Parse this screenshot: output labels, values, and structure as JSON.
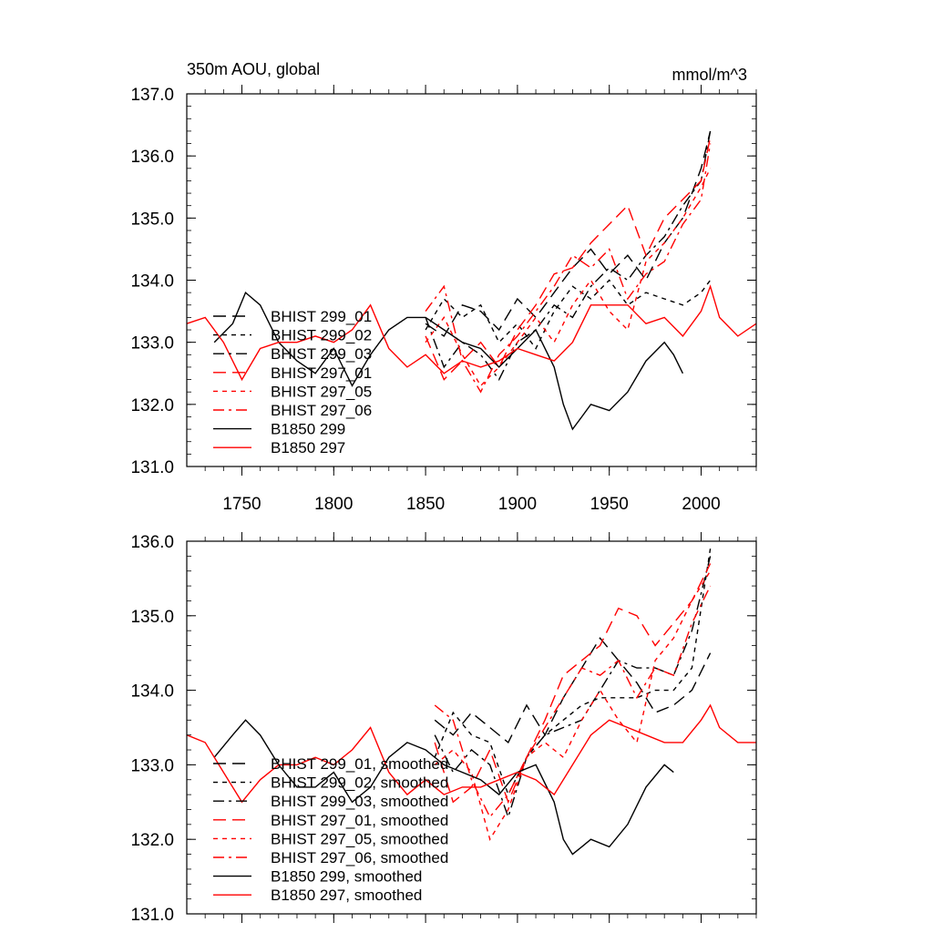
{
  "chart_data": [
    {
      "type": "line",
      "title": "350m AOU, global",
      "units": "mmol/m^3",
      "xlim": [
        1720,
        2030
      ],
      "ylim": [
        131.0,
        137.0
      ],
      "x_ticks": [
        1750,
        1800,
        1850,
        1900,
        1950,
        2000
      ],
      "y_ticks": [
        131.0,
        132.0,
        133.0,
        134.0,
        135.0,
        136.0,
        137.0
      ],
      "y_tick_labels": [
        "131.0",
        "132.0",
        "133.0",
        "134.0",
        "135.0",
        "136.0",
        "137.0"
      ],
      "x_tick_labels": [
        "1750",
        "1800",
        "1850",
        "1900",
        "1950",
        "2000"
      ],
      "grid": false,
      "legend_position": "lower-left",
      "series": [
        {
          "name": "BHIST 299_01",
          "color": "#000000",
          "dash": "longdash",
          "x": [
            1850,
            1860,
            1870,
            1880,
            1890,
            1900,
            1910,
            1920,
            1930,
            1940,
            1950,
            1960,
            1970,
            1980,
            1990,
            2000,
            2005
          ],
          "y": [
            133.3,
            133.1,
            133.6,
            133.5,
            133.2,
            133.7,
            133.4,
            133.8,
            134.2,
            134.5,
            134.1,
            134.4,
            134.0,
            134.6,
            135.0,
            135.8,
            136.4
          ]
        },
        {
          "name": "BHIST 299_02",
          "color": "#000000",
          "dash": "shortdash",
          "x": [
            1850,
            1860,
            1870,
            1880,
            1890,
            1900,
            1910,
            1920,
            1930,
            1940,
            1950,
            1960,
            1970,
            1980,
            1990,
            2000,
            2005
          ],
          "y": [
            133.2,
            133.7,
            133.4,
            133.6,
            133.0,
            133.3,
            132.9,
            133.5,
            133.9,
            133.7,
            134.0,
            133.6,
            133.8,
            133.7,
            133.6,
            133.8,
            134.0
          ]
        },
        {
          "name": "BHIST 299_03",
          "color": "#000000",
          "dash": "dashdot",
          "x": [
            1850,
            1860,
            1870,
            1880,
            1890,
            1900,
            1910,
            1920,
            1930,
            1940,
            1950,
            1960,
            1970,
            1980,
            1990,
            2000,
            2005
          ],
          "y": [
            133.4,
            132.6,
            133.0,
            132.8,
            132.4,
            133.0,
            133.2,
            133.6,
            133.4,
            133.9,
            134.2,
            134.0,
            134.4,
            134.7,
            135.2,
            135.6,
            136.4
          ]
        },
        {
          "name": "BHIST 297_01",
          "color": "#ff0000",
          "dash": "longdash",
          "x": [
            1850,
            1860,
            1870,
            1880,
            1890,
            1900,
            1910,
            1920,
            1930,
            1940,
            1950,
            1960,
            1970,
            1980,
            1990,
            2000,
            2005
          ],
          "y": [
            133.1,
            132.4,
            132.7,
            133.0,
            132.6,
            133.2,
            133.6,
            134.1,
            134.2,
            134.6,
            134.9,
            135.2,
            134.4,
            135.0,
            135.3,
            135.6,
            136.3
          ]
        },
        {
          "name": "BHIST 297_05",
          "color": "#ff0000",
          "dash": "shortdash",
          "x": [
            1850,
            1860,
            1870,
            1880,
            1890,
            1900,
            1910,
            1920,
            1930,
            1940,
            1950,
            1960,
            1970,
            1980,
            1990,
            2000,
            2005
          ],
          "y": [
            133.0,
            133.4,
            132.8,
            132.3,
            132.6,
            133.0,
            133.4,
            133.0,
            133.6,
            134.0,
            133.5,
            133.2,
            134.3,
            134.6,
            135.0,
            135.5,
            135.8
          ]
        },
        {
          "name": "BHIST 297_06",
          "color": "#ff0000",
          "dash": "dashdot",
          "x": [
            1850,
            1860,
            1870,
            1880,
            1890,
            1900,
            1910,
            1920,
            1930,
            1940,
            1950,
            1960,
            1970,
            1980,
            1990,
            2000,
            2005
          ],
          "y": [
            133.5,
            133.9,
            132.7,
            132.2,
            132.8,
            133.1,
            133.5,
            133.9,
            134.4,
            134.2,
            134.5,
            133.7,
            134.1,
            134.3,
            134.9,
            135.3,
            136.2
          ]
        },
        {
          "name": "B1850 299",
          "color": "#000000",
          "dash": "solid",
          "x": [
            1735,
            1745,
            1752,
            1760,
            1770,
            1780,
            1790,
            1800,
            1810,
            1820,
            1830,
            1840,
            1850,
            1860,
            1870,
            1880,
            1890,
            1900,
            1910,
            1920,
            1925,
            1930,
            1935,
            1940,
            1950,
            1960,
            1970,
            1980,
            1985,
            1990
          ],
          "y": [
            133.0,
            133.3,
            133.8,
            133.6,
            133.0,
            132.7,
            132.5,
            132.9,
            132.3,
            132.8,
            133.2,
            133.4,
            133.4,
            133.2,
            133.0,
            132.9,
            132.6,
            132.9,
            133.2,
            132.6,
            132.0,
            131.6,
            131.8,
            132.0,
            131.9,
            132.2,
            132.7,
            133.0,
            132.8,
            132.5
          ],
          "smoothed": false
        },
        {
          "name": "B1850 297",
          "color": "#ff0000",
          "dash": "solid",
          "x": [
            1720,
            1730,
            1740,
            1750,
            1760,
            1770,
            1780,
            1790,
            1800,
            1810,
            1820,
            1830,
            1840,
            1850,
            1860,
            1870,
            1880,
            1890,
            1900,
            1910,
            1920,
            1930,
            1940,
            1950,
            1960,
            1970,
            1980,
            1990,
            2000,
            2005,
            2010,
            2020,
            2030
          ],
          "y": [
            133.3,
            133.4,
            133.0,
            132.4,
            132.9,
            133.0,
            133.0,
            133.1,
            133.0,
            133.2,
            133.6,
            132.9,
            132.6,
            132.8,
            132.5,
            132.7,
            132.6,
            132.7,
            132.9,
            132.8,
            132.7,
            133.0,
            133.6,
            133.6,
            133.6,
            133.3,
            133.4,
            133.1,
            133.5,
            133.9,
            133.4,
            133.1,
            133.3
          ]
        }
      ]
    },
    {
      "type": "line",
      "xlim": [
        1720,
        2030
      ],
      "ylim": [
        131.0,
        136.0
      ],
      "y_ticks": [
        131.0,
        132.0,
        133.0,
        134.0,
        135.0,
        136.0
      ],
      "y_tick_labels": [
        "131.0",
        "132.0",
        "133.0",
        "134.0",
        "135.0",
        "136.0"
      ],
      "x_ticks": [
        1750,
        1800,
        1850,
        1900,
        1950,
        2000
      ],
      "grid": false,
      "legend_position": "lower-left",
      "series": [
        {
          "name": "BHIST 299_01, smoothed",
          "color": "#000000",
          "dash": "longdash",
          "x": [
            1855,
            1865,
            1875,
            1885,
            1895,
            1905,
            1915,
            1925,
            1935,
            1945,
            1955,
            1965,
            1975,
            1985,
            1995,
            2005
          ],
          "y": [
            133.6,
            133.4,
            133.7,
            133.5,
            133.3,
            133.8,
            133.4,
            133.9,
            134.3,
            134.7,
            134.4,
            134.1,
            133.7,
            133.8,
            134.0,
            134.5
          ]
        },
        {
          "name": "BHIST 299_02, smoothed",
          "color": "#000000",
          "dash": "shortdash",
          "x": [
            1855,
            1865,
            1875,
            1885,
            1895,
            1905,
            1915,
            1925,
            1935,
            1945,
            1955,
            1965,
            1975,
            1985,
            1995,
            2005
          ],
          "y": [
            133.1,
            133.7,
            133.4,
            133.3,
            132.6,
            133.1,
            133.4,
            133.6,
            133.8,
            133.9,
            133.9,
            133.9,
            134.0,
            134.0,
            134.3,
            135.9
          ]
        },
        {
          "name": "BHIST 299_03, smoothed",
          "color": "#000000",
          "dash": "dashdot",
          "x": [
            1855,
            1865,
            1875,
            1885,
            1895,
            1905,
            1915,
            1925,
            1935,
            1945,
            1955,
            1965,
            1975,
            1985,
            1995,
            2005
          ],
          "y": [
            133.4,
            132.9,
            133.2,
            133.0,
            132.3,
            133.1,
            133.4,
            133.5,
            133.6,
            134.0,
            134.4,
            134.3,
            134.3,
            134.2,
            134.8,
            135.8
          ]
        },
        {
          "name": "BHIST 297_01, smoothed",
          "color": "#ff0000",
          "dash": "longdash",
          "x": [
            1855,
            1865,
            1875,
            1885,
            1895,
            1905,
            1915,
            1925,
            1935,
            1945,
            1955,
            1965,
            1975,
            1985,
            1995,
            2005
          ],
          "y": [
            133.3,
            132.5,
            132.7,
            133.2,
            132.5,
            133.1,
            133.6,
            134.2,
            134.4,
            134.6,
            135.1,
            135.0,
            134.6,
            134.9,
            135.2,
            135.7
          ]
        },
        {
          "name": "BHIST 297_05, smoothed",
          "color": "#ff0000",
          "dash": "shortdash",
          "x": [
            1855,
            1865,
            1875,
            1885,
            1895,
            1905,
            1915,
            1925,
            1935,
            1945,
            1955,
            1965,
            1975,
            1985,
            1995,
            2005
          ],
          "y": [
            133.0,
            133.2,
            132.9,
            132.0,
            132.4,
            133.1,
            133.3,
            133.1,
            133.6,
            134.0,
            133.6,
            133.3,
            134.4,
            134.7,
            135.2,
            135.6
          ]
        },
        {
          "name": "BHIST 297_06, smoothed",
          "color": "#ff0000",
          "dash": "dashdot",
          "x": [
            1855,
            1865,
            1875,
            1885,
            1895,
            1905,
            1915,
            1925,
            1935,
            1945,
            1955,
            1965,
            1975,
            1985,
            1995,
            2005
          ],
          "y": [
            133.8,
            133.6,
            132.8,
            132.3,
            132.6,
            133.1,
            133.5,
            133.9,
            134.3,
            134.2,
            134.4,
            133.9,
            134.3,
            134.2,
            134.9,
            135.4
          ]
        },
        {
          "name": "B1850 299, smoothed",
          "color": "#000000",
          "dash": "solid",
          "x": [
            1735,
            1745,
            1752,
            1760,
            1770,
            1780,
            1790,
            1800,
            1810,
            1820,
            1830,
            1840,
            1850,
            1860,
            1870,
            1880,
            1890,
            1900,
            1910,
            1920,
            1925,
            1930,
            1935,
            1940,
            1950,
            1960,
            1970,
            1980,
            1985
          ],
          "y": [
            133.1,
            133.4,
            133.6,
            133.4,
            133.0,
            132.7,
            132.7,
            132.9,
            132.5,
            132.7,
            133.1,
            133.3,
            133.2,
            133.0,
            132.9,
            132.8,
            132.6,
            132.9,
            133.0,
            132.5,
            132.0,
            131.8,
            131.9,
            132.0,
            131.9,
            132.2,
            132.7,
            133.0,
            132.9
          ]
        },
        {
          "name": "B1850 297, smoothed",
          "color": "#ff0000",
          "dash": "solid",
          "x": [
            1720,
            1730,
            1740,
            1750,
            1760,
            1770,
            1780,
            1790,
            1800,
            1810,
            1820,
            1830,
            1840,
            1850,
            1860,
            1870,
            1880,
            1890,
            1900,
            1910,
            1920,
            1930,
            1940,
            1950,
            1960,
            1970,
            1980,
            1990,
            2000,
            2005,
            2010,
            2020,
            2030
          ],
          "y": [
            133.4,
            133.3,
            132.9,
            132.5,
            132.8,
            133.0,
            133.0,
            133.1,
            133.0,
            133.2,
            133.5,
            132.9,
            132.6,
            132.8,
            132.6,
            132.7,
            132.7,
            132.8,
            132.9,
            132.8,
            132.6,
            133.0,
            133.4,
            133.6,
            133.5,
            133.4,
            133.3,
            133.3,
            133.6,
            133.8,
            133.5,
            133.3,
            133.3
          ]
        }
      ]
    }
  ]
}
